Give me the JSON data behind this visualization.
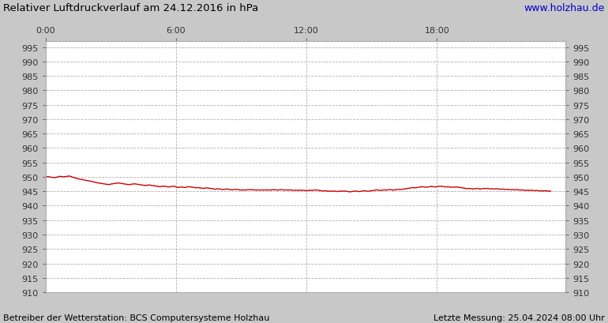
{
  "title": "Relativer Luftdruckverlauf am 24.12.2016 in hPa",
  "url_text": "www.holzhau.de",
  "footer_left": "Betreiber der Wetterstation: BCS Computersysteme Holzhau",
  "footer_right": "Letzte Messung: 25.04.2024 08:00 Uhr",
  "xlim": [
    0,
    287
  ],
  "ylim": [
    910,
    997
  ],
  "yticks": [
    910,
    915,
    920,
    925,
    930,
    935,
    940,
    945,
    950,
    955,
    960,
    965,
    970,
    975,
    980,
    985,
    990,
    995
  ],
  "xtick_positions": [
    0,
    72,
    144,
    216
  ],
  "xtick_labels": [
    "0:00",
    "6:00",
    "12:00",
    "18:00"
  ],
  "line_color": "#cc0000",
  "bg_color": "#c8c8c8",
  "plot_bg_color": "#ffffff",
  "grid_color": "#b0b0b0",
  "title_color": "#000000",
  "url_color": "#0000cc",
  "footer_color": "#000000",
  "pressure_data": [
    950.2,
    950.1,
    950.0,
    949.9,
    949.8,
    949.7,
    949.9,
    950.0,
    950.2,
    950.1,
    950.0,
    950.1,
    950.2,
    950.3,
    950.1,
    949.9,
    949.7,
    949.5,
    949.3,
    949.2,
    949.1,
    949.0,
    948.8,
    948.7,
    948.6,
    948.5,
    948.3,
    948.2,
    948.0,
    947.9,
    947.8,
    947.7,
    947.6,
    947.5,
    947.4,
    947.3,
    947.5,
    947.6,
    947.7,
    947.8,
    947.9,
    947.8,
    947.7,
    947.6,
    947.5,
    947.4,
    947.3,
    947.4,
    947.5,
    947.6,
    947.5,
    947.4,
    947.3,
    947.2,
    947.1,
    947.0,
    947.1,
    947.2,
    947.1,
    947.0,
    946.9,
    946.8,
    946.7,
    946.6,
    946.7,
    946.8,
    946.7,
    946.6,
    946.5,
    946.6,
    946.7,
    946.8,
    946.5,
    946.3,
    946.4,
    946.5,
    946.4,
    946.3,
    946.5,
    946.6,
    946.5,
    946.4,
    946.3,
    946.2,
    946.3,
    946.2,
    946.1,
    946.0,
    946.1,
    946.2,
    946.1,
    946.0,
    945.9,
    945.8,
    945.7,
    945.9,
    945.8,
    945.7,
    945.6,
    945.7,
    945.8,
    945.7,
    945.6,
    945.5,
    945.6,
    945.7,
    945.6,
    945.5,
    945.4,
    945.5,
    945.4,
    945.5,
    945.6,
    945.5,
    945.6,
    945.5,
    945.4,
    945.5,
    945.4,
    945.5,
    945.4,
    945.5,
    945.4,
    945.5,
    945.4,
    945.5,
    945.6,
    945.5,
    945.4,
    945.5,
    945.6,
    945.5,
    945.4,
    945.5,
    945.4,
    945.5,
    945.4,
    945.3,
    945.4,
    945.3,
    945.4,
    945.3,
    945.4,
    945.3,
    945.2,
    945.3,
    945.4,
    945.3,
    945.4,
    945.5,
    945.4,
    945.3,
    945.2,
    945.1,
    945.2,
    945.1,
    945.0,
    945.1,
    945.0,
    945.1,
    945.0,
    944.9,
    945.0,
    945.1,
    945.0,
    945.1,
    945.0,
    944.9,
    944.8,
    944.9,
    945.0,
    945.1,
    945.0,
    944.9,
    945.0,
    945.1,
    945.2,
    945.1,
    945.0,
    945.1,
    945.2,
    945.3,
    945.4,
    945.5,
    945.4,
    945.3,
    945.4,
    945.5,
    945.4,
    945.5,
    945.6,
    945.5,
    945.4,
    945.5,
    945.6,
    945.7,
    945.6,
    945.7,
    945.8,
    945.9,
    946.0,
    946.1,
    946.2,
    946.3,
    946.2,
    946.3,
    946.4,
    946.5,
    946.6,
    946.5,
    946.4,
    946.5,
    946.6,
    946.7,
    946.6,
    946.5,
    946.6,
    946.7,
    946.8,
    946.7,
    946.6,
    946.5,
    946.6,
    946.5,
    946.4,
    946.5,
    946.4,
    946.5,
    946.4,
    946.3,
    946.2,
    946.1,
    946.0,
    945.9,
    946.0,
    945.9,
    945.8,
    945.9,
    946.0,
    945.9,
    945.8,
    945.9,
    946.0,
    945.9,
    946.0,
    945.9,
    945.8,
    945.9,
    945.8,
    945.9,
    945.8,
    945.7,
    945.8,
    945.7,
    945.6,
    945.7,
    945.6,
    945.5,
    945.6,
    945.5,
    945.6,
    945.5,
    945.4,
    945.5,
    945.4,
    945.3,
    945.4,
    945.3,
    945.4,
    945.3,
    945.2,
    945.3,
    945.2,
    945.1,
    945.2,
    945.1,
    945.2,
    945.1,
    945.0,
    945.1
  ]
}
